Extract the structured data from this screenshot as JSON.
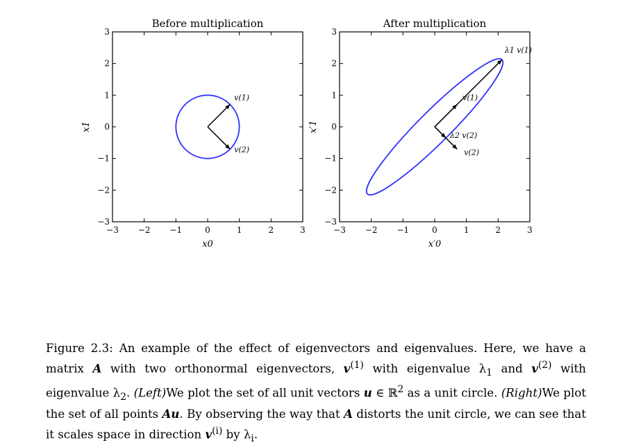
{
  "chart_data": [
    {
      "type": "line",
      "title": "Before multiplication",
      "xlabel": "x0",
      "ylabel": "x1",
      "xlim": [
        -3,
        3
      ],
      "ylim": [
        -3,
        3
      ],
      "xticks": [
        "−3",
        "−2",
        "−1",
        "0",
        "1",
        "2",
        "3"
      ],
      "yticks": [
        "−3",
        "−2",
        "−1",
        "0",
        "1",
        "2",
        "3"
      ],
      "grid": false,
      "series": [
        {
          "kind": "ellipse",
          "color": "#3030ff",
          "center": [
            0,
            0
          ],
          "radii": [
            1,
            1
          ],
          "angle_deg": 0
        }
      ],
      "vectors": [
        {
          "label": "v(1)",
          "from": [
            0,
            0
          ],
          "to": [
            0.707,
            0.707
          ]
        },
        {
          "label": "v(2)",
          "from": [
            0,
            0
          ],
          "to": [
            0.707,
            -0.707
          ]
        }
      ]
    },
    {
      "type": "line",
      "title": "After multiplication",
      "xlabel": "x′0",
      "ylabel": "x′1",
      "xlim": [
        -3,
        3
      ],
      "ylim": [
        -3,
        3
      ],
      "xticks": [
        "−3",
        "−2",
        "−1",
        "0",
        "1",
        "2",
        "3"
      ],
      "yticks": [
        "−3",
        "−2",
        "−1",
        "0",
        "1",
        "2",
        "3"
      ],
      "grid": false,
      "series": [
        {
          "kind": "ellipse",
          "color": "#3030ff",
          "center": [
            0,
            0
          ],
          "radii": [
            3,
            0.5
          ],
          "angle_deg": 45
        }
      ],
      "vectors": [
        {
          "label": "λ1 v(1)",
          "from": [
            0,
            0
          ],
          "to": [
            2.12,
            2.12
          ]
        },
        {
          "label": "v(1)",
          "from": [
            0,
            0
          ],
          "to": [
            0.707,
            0.707
          ]
        },
        {
          "label": "λ2 v(2)",
          "from": [
            0,
            0
          ],
          "to": [
            0.35,
            -0.35
          ]
        },
        {
          "label": "v(2)",
          "from": [
            0,
            0
          ],
          "to": [
            0.707,
            -0.707
          ]
        }
      ]
    }
  ],
  "caption": {
    "figure_label": "Figure 2.3:",
    "s1": " An example of the effect of eigenvectors and eigenvalues. Here, we have a matrix ",
    "A": "A",
    "s2": " with two orthonormal eigenvectors, ",
    "v": "v",
    "sup1": "(1)",
    "s3": " with eigenvalue λ",
    "sub1": "1",
    "s4": " and ",
    "sup2": "(2)",
    "s5": " with eigenvalue λ",
    "sub2": "2",
    "s6": ". ",
    "left": "(Left)",
    "s7": "We plot the set of all unit vectors ",
    "u": "u",
    "s8": " ∈ ℝ",
    "sq": "2",
    "s9": " as a unit circle. ",
    "right": "(Right)",
    "s10": "We plot the set of all points ",
    "Au": "Au",
    "s11": ". By observing the way that ",
    "s12": " distorts the unit circle, we can see that it scales space in direction ",
    "supi": "(i)",
    "s13": " by λ",
    "subi": "i",
    "s14": "."
  }
}
